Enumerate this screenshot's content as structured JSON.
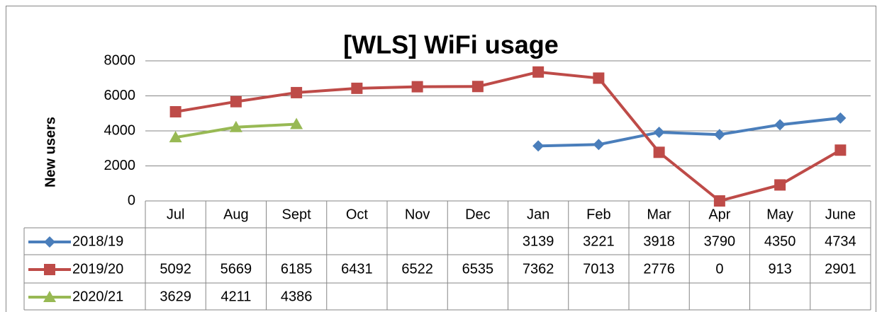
{
  "chart_data": {
    "type": "line",
    "title": "[WLS] WiFi usage",
    "y_label": "New users",
    "categories": [
      "Jul",
      "Aug",
      "Sept",
      "Oct",
      "Nov",
      "Dec",
      "Jan",
      "Feb",
      "Mar",
      "Apr",
      "May",
      "June"
    ],
    "series": [
      {
        "name": "2018/19",
        "color": "#4a7ebb",
        "marker": "diamond",
        "values": [
          null,
          null,
          null,
          null,
          null,
          null,
          3139,
          3221,
          3918,
          3790,
          4350,
          4734
        ]
      },
      {
        "name": "2019/20",
        "color": "#be4b48",
        "marker": "square",
        "values": [
          5092,
          5669,
          6185,
          6431,
          6522,
          6535,
          7362,
          7013,
          2776,
          0,
          913,
          2901
        ]
      },
      {
        "name": "2020/21",
        "color": "#98b954",
        "marker": "triangle",
        "values": [
          3629,
          4211,
          4386,
          null,
          null,
          null,
          null,
          null,
          null,
          null,
          null,
          null
        ]
      }
    ],
    "ylim": [
      0,
      8000
    ],
    "yticks": [
      0,
      2000,
      4000,
      6000,
      8000
    ],
    "grid": true,
    "data_table": true
  }
}
